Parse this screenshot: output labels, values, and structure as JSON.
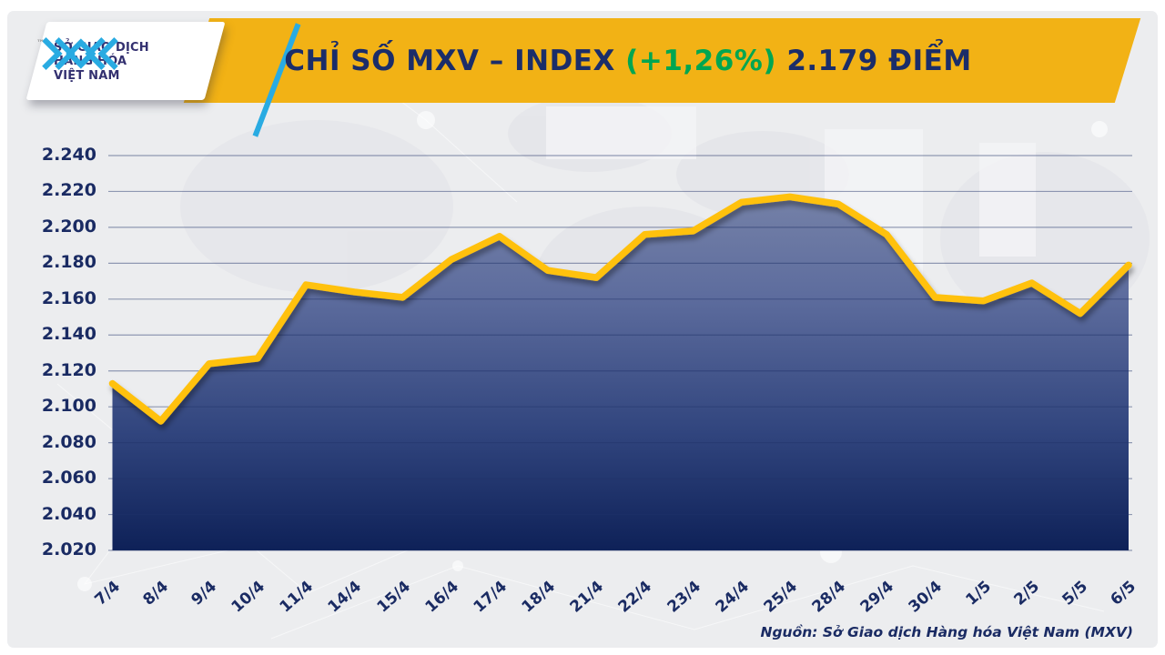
{
  "header": {
    "logo": {
      "line1": "SỞ GIAO DỊCH",
      "line2": "HÀNG HÓA",
      "line3": "VIỆT NAM",
      "trademark": "™"
    },
    "title": {
      "main": "CHỈ SỐ MXV – INDEX ",
      "change": "(+1,26%)",
      "points": " 2.179 ĐIỂM"
    }
  },
  "chart_data": {
    "type": "area",
    "title": "CHỈ SỐ MXV – INDEX (+1,26%) 2.179 ĐIỂM",
    "series_name": "MXV-Index",
    "categories": [
      "7/4",
      "8/4",
      "9/4",
      "10/4",
      "11/4",
      "14/4",
      "15/4",
      "16/4",
      "17/4",
      "18/4",
      "21/4",
      "22/4",
      "23/4",
      "24/4",
      "25/4",
      "28/4",
      "29/4",
      "30/4",
      "1/5",
      "2/5",
      "5/5",
      "6/5"
    ],
    "values": [
      2113,
      2092,
      2124,
      2127,
      2168,
      2164,
      2161,
      2182,
      2195,
      2176,
      2172,
      2196,
      2198,
      2214,
      2217,
      2213,
      2196,
      2161,
      2159,
      2169,
      2152,
      2179
    ],
    "ylim": [
      2020,
      2240
    ],
    "y_ticks": [
      {
        "value": 2020,
        "label": "2.020"
      },
      {
        "value": 2040,
        "label": "2.040"
      },
      {
        "value": 2060,
        "label": "2.060"
      },
      {
        "value": 2080,
        "label": "2.080"
      },
      {
        "value": 2100,
        "label": "2.100"
      },
      {
        "value": 2120,
        "label": "2.120"
      },
      {
        "value": 2140,
        "label": "2.140"
      },
      {
        "value": 2160,
        "label": "2.160"
      },
      {
        "value": 2180,
        "label": "2.180"
      },
      {
        "value": 2200,
        "label": "2.200"
      },
      {
        "value": 2220,
        "label": "2.220"
      },
      {
        "value": 2240,
        "label": "2.240"
      }
    ],
    "grid": "horizontal",
    "legend": false,
    "last_value_label": "2.179",
    "change_percent_label": "+1,26%"
  },
  "footer": {
    "source": "Nguồn: Sở Giao dịch Hàng hóa Việt Nam (MXV)"
  },
  "colors": {
    "banner_gold": "#F2B215",
    "line_gold": "#FFC10E",
    "title_navy": "#1B2D69",
    "change_green": "#00A651",
    "axis_navy": "#1A2B63",
    "logo_cyan": "#29ABE2",
    "gridline": "rgba(30,48,105,0.45)",
    "area_gradient": [
      "#7E89AB",
      "#5E6D9E",
      "#31457E",
      "#0E2158"
    ]
  }
}
